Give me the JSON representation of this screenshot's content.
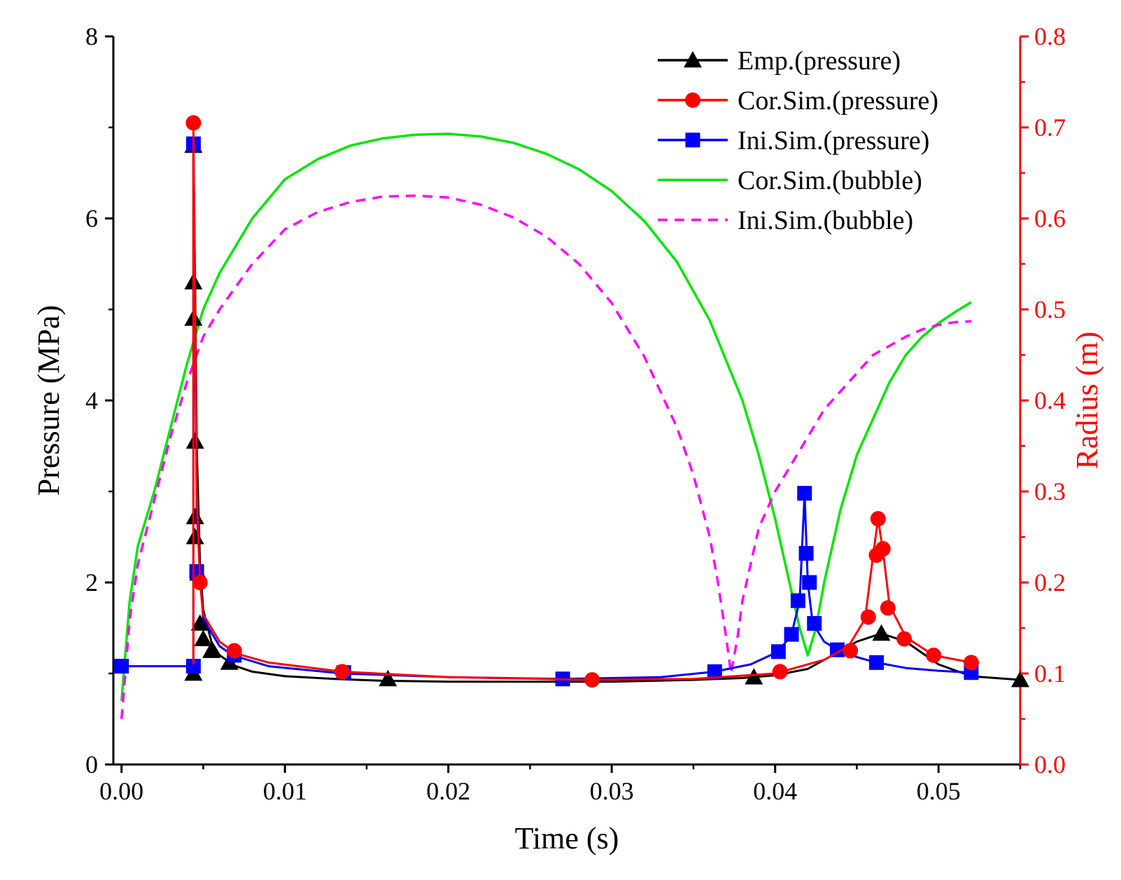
{
  "chart_data": {
    "type": "line",
    "title": "",
    "xlabel": "Time (s)",
    "ylabel_left": "Pressure (MPa)",
    "ylabel_right": "Radius (m)",
    "xlim": [
      -0.0005,
      0.055
    ],
    "ylim_left": [
      0,
      8
    ],
    "ylim_right": [
      0.0,
      0.8
    ],
    "grid": false,
    "legend_position": "top-right",
    "x_ticks": [
      0.0,
      0.01,
      0.02,
      0.03,
      0.04,
      0.05
    ],
    "x_tick_labels": [
      "0.00",
      "0.01",
      "0.02",
      "0.03",
      "0.04",
      "0.05"
    ],
    "y_left_ticks": [
      0,
      2,
      4,
      6,
      8
    ],
    "y_left_tick_labels": [
      "0",
      "2",
      "4",
      "6",
      "8"
    ],
    "y_right_ticks": [
      0.0,
      0.1,
      0.2,
      0.3,
      0.4,
      0.5,
      0.6,
      0.7,
      0.8
    ],
    "y_right_tick_labels": [
      "0.0",
      "0.1",
      "0.2",
      "0.3",
      "0.4",
      "0.5",
      "0.6",
      "0.7",
      "0.8"
    ],
    "colors": {
      "axis": "#000000",
      "right_axis": "#ff0000",
      "emp": "#000000",
      "cor_pressure": "#ff0000",
      "ini_pressure": "#0000ff",
      "cor_bubble": "#00e600",
      "ini_bubble": "#ff00ff"
    },
    "series": [
      {
        "name": "Emp.(pressure)",
        "axis": "left",
        "color": "#000000",
        "marker": "triangle",
        "dashed": false,
        "line": [
          [
            0.0044,
            1.0
          ],
          [
            0.0044,
            6.8
          ],
          [
            0.0045,
            5.3
          ],
          [
            0.0046,
            3.5
          ],
          [
            0.0048,
            2.2
          ],
          [
            0.005,
            1.7
          ],
          [
            0.0055,
            1.35
          ],
          [
            0.006,
            1.2
          ],
          [
            0.007,
            1.08
          ],
          [
            0.008,
            1.02
          ],
          [
            0.01,
            0.97
          ],
          [
            0.013,
            0.94
          ],
          [
            0.016,
            0.92
          ],
          [
            0.02,
            0.91
          ],
          [
            0.025,
            0.91
          ],
          [
            0.03,
            0.91
          ],
          [
            0.035,
            0.93
          ],
          [
            0.038,
            0.95
          ],
          [
            0.04,
            0.98
          ],
          [
            0.042,
            1.05
          ],
          [
            0.0435,
            1.2
          ],
          [
            0.045,
            1.35
          ],
          [
            0.0465,
            1.44
          ],
          [
            0.048,
            1.35
          ],
          [
            0.05,
            1.1
          ],
          [
            0.052,
            0.97
          ],
          [
            0.055,
            0.93
          ]
        ],
        "markers": [
          [
            0.0044,
            1.0
          ],
          [
            0.0044,
            6.8
          ],
          [
            0.0044,
            5.3
          ],
          [
            0.0044,
            4.9
          ],
          [
            0.0045,
            3.55
          ],
          [
            0.0045,
            2.72
          ],
          [
            0.0045,
            2.5
          ],
          [
            0.0047,
            2.1
          ],
          [
            0.0048,
            1.55
          ],
          [
            0.005,
            1.38
          ],
          [
            0.0055,
            1.25
          ],
          [
            0.0066,
            1.12
          ],
          [
            0.0163,
            0.94
          ],
          [
            0.0387,
            0.96
          ],
          [
            0.0465,
            1.44
          ],
          [
            0.055,
            0.93
          ]
        ]
      },
      {
        "name": "Cor.Sim.(pressure)",
        "axis": "left",
        "color": "#ff0000",
        "marker": "circle",
        "dashed": false,
        "line": [
          [
            0.0044,
            1.1
          ],
          [
            0.0044,
            7.0
          ],
          [
            0.0046,
            3.0
          ],
          [
            0.0048,
            2.0
          ],
          [
            0.005,
            1.65
          ],
          [
            0.006,
            1.35
          ],
          [
            0.007,
            1.22
          ],
          [
            0.009,
            1.12
          ],
          [
            0.0135,
            1.02
          ],
          [
            0.02,
            0.96
          ],
          [
            0.0288,
            0.93
          ],
          [
            0.035,
            0.94
          ],
          [
            0.04,
            1.0
          ],
          [
            0.043,
            1.15
          ],
          [
            0.0445,
            1.3
          ],
          [
            0.0455,
            1.6
          ],
          [
            0.046,
            2.3
          ],
          [
            0.0463,
            2.7
          ],
          [
            0.0466,
            2.35
          ],
          [
            0.047,
            1.75
          ],
          [
            0.048,
            1.4
          ],
          [
            0.0497,
            1.2
          ],
          [
            0.052,
            1.12
          ]
        ],
        "markers": [
          [
            0.0044,
            7.05
          ],
          [
            0.0048,
            2.0
          ],
          [
            0.0069,
            1.25
          ],
          [
            0.0135,
            1.02
          ],
          [
            0.0288,
            0.93
          ],
          [
            0.0403,
            1.02
          ],
          [
            0.0446,
            1.25
          ],
          [
            0.0457,
            1.62
          ],
          [
            0.0462,
            2.3
          ],
          [
            0.0463,
            2.7
          ],
          [
            0.0466,
            2.37
          ],
          [
            0.0469,
            1.72
          ],
          [
            0.0479,
            1.38
          ],
          [
            0.0497,
            1.2
          ],
          [
            0.052,
            1.12
          ]
        ]
      },
      {
        "name": "Ini.Sim.(pressure)",
        "axis": "left",
        "color": "#0000ff",
        "marker": "square",
        "dashed": false,
        "line": [
          [
            0.0,
            1.08
          ],
          [
            0.0044,
            1.08
          ],
          [
            0.0044,
            6.8
          ],
          [
            0.0046,
            2.8
          ],
          [
            0.0048,
            2.1
          ],
          [
            0.005,
            1.6
          ],
          [
            0.006,
            1.3
          ],
          [
            0.0068,
            1.2
          ],
          [
            0.009,
            1.08
          ],
          [
            0.0135,
            1.0
          ],
          [
            0.02,
            0.96
          ],
          [
            0.027,
            0.94
          ],
          [
            0.033,
            0.96
          ],
          [
            0.0363,
            1.02
          ],
          [
            0.0385,
            1.1
          ],
          [
            0.0402,
            1.24
          ],
          [
            0.041,
            1.43
          ],
          [
            0.0415,
            1.8
          ],
          [
            0.0418,
            2.98
          ],
          [
            0.042,
            2.0
          ],
          [
            0.0423,
            1.55
          ],
          [
            0.043,
            1.35
          ],
          [
            0.0438,
            1.26
          ],
          [
            0.045,
            1.18
          ],
          [
            0.0462,
            1.12
          ],
          [
            0.048,
            1.06
          ],
          [
            0.05,
            1.03
          ],
          [
            0.052,
            1.01
          ]
        ],
        "markers": [
          [
            0.0,
            1.08
          ],
          [
            0.0044,
            1.08
          ],
          [
            0.0044,
            6.82
          ],
          [
            0.0046,
            2.12
          ],
          [
            0.0069,
            1.2
          ],
          [
            0.0136,
            1.01
          ],
          [
            0.027,
            0.94
          ],
          [
            0.0363,
            1.02
          ],
          [
            0.0402,
            1.24
          ],
          [
            0.041,
            1.43
          ],
          [
            0.0414,
            1.8
          ],
          [
            0.0418,
            2.98
          ],
          [
            0.0419,
            2.32
          ],
          [
            0.0421,
            2.0
          ],
          [
            0.0424,
            1.55
          ],
          [
            0.0438,
            1.26
          ],
          [
            0.0462,
            1.12
          ],
          [
            0.052,
            1.01
          ]
        ]
      },
      {
        "name": "Cor.Sim.(bubble)",
        "axis": "right",
        "color": "#00e600",
        "marker": "none",
        "dashed": false,
        "line": [
          [
            0.0,
            0.07
          ],
          [
            0.0005,
            0.18
          ],
          [
            0.001,
            0.24
          ],
          [
            0.002,
            0.3
          ],
          [
            0.003,
            0.37
          ],
          [
            0.004,
            0.44
          ],
          [
            0.005,
            0.5
          ],
          [
            0.006,
            0.54
          ],
          [
            0.008,
            0.6
          ],
          [
            0.01,
            0.643
          ],
          [
            0.012,
            0.665
          ],
          [
            0.014,
            0.68
          ],
          [
            0.016,
            0.688
          ],
          [
            0.018,
            0.692
          ],
          [
            0.02,
            0.693
          ],
          [
            0.022,
            0.69
          ],
          [
            0.024,
            0.683
          ],
          [
            0.026,
            0.671
          ],
          [
            0.028,
            0.654
          ],
          [
            0.03,
            0.63
          ],
          [
            0.032,
            0.597
          ],
          [
            0.034,
            0.552
          ],
          [
            0.036,
            0.488
          ],
          [
            0.038,
            0.4
          ],
          [
            0.039,
            0.34
          ],
          [
            0.04,
            0.27
          ],
          [
            0.041,
            0.19
          ],
          [
            0.0415,
            0.15
          ],
          [
            0.042,
            0.12
          ],
          [
            0.0425,
            0.15
          ],
          [
            0.043,
            0.2
          ],
          [
            0.044,
            0.28
          ],
          [
            0.045,
            0.34
          ],
          [
            0.046,
            0.38
          ],
          [
            0.047,
            0.42
          ],
          [
            0.048,
            0.45
          ],
          [
            0.049,
            0.47
          ],
          [
            0.05,
            0.485
          ],
          [
            0.051,
            0.497
          ],
          [
            0.052,
            0.508
          ]
        ]
      },
      {
        "name": "Ini.Sim.(bubble)",
        "axis": "right",
        "color": "#ff00ff",
        "marker": "none",
        "dashed": true,
        "line": [
          [
            0.0,
            0.05
          ],
          [
            0.0005,
            0.16
          ],
          [
            0.001,
            0.22
          ],
          [
            0.002,
            0.29
          ],
          [
            0.003,
            0.36
          ],
          [
            0.004,
            0.42
          ],
          [
            0.005,
            0.47
          ],
          [
            0.006,
            0.5
          ],
          [
            0.008,
            0.55
          ],
          [
            0.01,
            0.588
          ],
          [
            0.012,
            0.607
          ],
          [
            0.014,
            0.618
          ],
          [
            0.016,
            0.624
          ],
          [
            0.018,
            0.625
          ],
          [
            0.02,
            0.623
          ],
          [
            0.022,
            0.615
          ],
          [
            0.024,
            0.601
          ],
          [
            0.026,
            0.58
          ],
          [
            0.028,
            0.55
          ],
          [
            0.03,
            0.507
          ],
          [
            0.032,
            0.448
          ],
          [
            0.034,
            0.37
          ],
          [
            0.035,
            0.318
          ],
          [
            0.036,
            0.25
          ],
          [
            0.0365,
            0.2
          ],
          [
            0.037,
            0.14
          ],
          [
            0.0373,
            0.1
          ],
          [
            0.0377,
            0.14
          ],
          [
            0.038,
            0.18
          ],
          [
            0.039,
            0.26
          ],
          [
            0.04,
            0.3
          ],
          [
            0.041,
            0.33
          ],
          [
            0.042,
            0.36
          ],
          [
            0.043,
            0.39
          ],
          [
            0.044,
            0.41
          ],
          [
            0.045,
            0.43
          ],
          [
            0.046,
            0.45
          ],
          [
            0.047,
            0.46
          ],
          [
            0.048,
            0.47
          ],
          [
            0.049,
            0.478
          ],
          [
            0.05,
            0.483
          ],
          [
            0.051,
            0.486
          ],
          [
            0.052,
            0.487
          ]
        ]
      }
    ]
  }
}
